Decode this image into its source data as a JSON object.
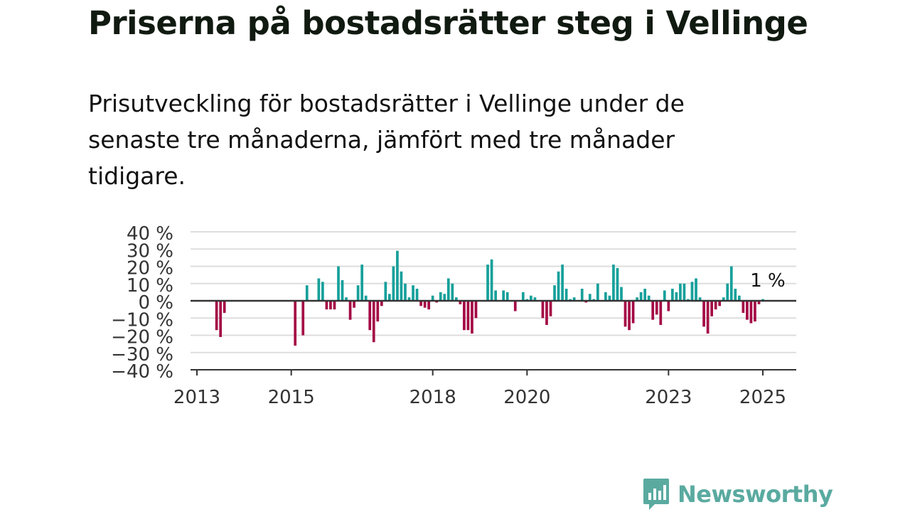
{
  "title": "Priserna på bostadsrätter steg i Vellinge",
  "subtitle": "Prisutveckling för bostadsrätter i Vellinge under de senaste tre månaderna, jämfört med tre månader tidigare.",
  "brand": {
    "name": "Newsworthy",
    "icon": "newsworthy-logo-icon"
  },
  "colors": {
    "positive": "#17a09b",
    "negative": "#a40b45",
    "grid": "#dddddd",
    "axis": "#333333",
    "text": "#111111"
  },
  "chart_data": {
    "type": "bar",
    "y_unit": "%",
    "ylim": [
      -40,
      40
    ],
    "y_ticks": [
      40,
      30,
      20,
      10,
      0,
      -10,
      -20,
      -30,
      -40
    ],
    "y_tick_labels": [
      "40 %",
      "30 %",
      "20 %",
      "10 %",
      "0 %",
      "−10 %",
      "−20 %",
      "−30 %",
      "−40 %"
    ],
    "x_ticks": [
      {
        "label": "2013",
        "date": "2013-01"
      },
      {
        "label": "2015",
        "date": "2015-01"
      },
      {
        "label": "2018",
        "date": "2018-01"
      },
      {
        "label": "2020",
        "date": "2020-01"
      },
      {
        "label": "2023",
        "date": "2023-01"
      },
      {
        "label": "2025",
        "date": "2025-01"
      }
    ],
    "grid": true,
    "annotation": {
      "text": "1 %",
      "date": "2025-01"
    },
    "points": [
      {
        "date": "2013-06",
        "value": -17
      },
      {
        "date": "2013-07",
        "value": -21
      },
      {
        "date": "2013-08",
        "value": -7
      },
      {
        "date": "2015-02",
        "value": -26
      },
      {
        "date": "2015-04",
        "value": -20
      },
      {
        "date": "2015-05",
        "value": 9
      },
      {
        "date": "2015-08",
        "value": 13
      },
      {
        "date": "2015-09",
        "value": 11
      },
      {
        "date": "2015-10",
        "value": -5
      },
      {
        "date": "2015-11",
        "value": -5
      },
      {
        "date": "2015-12",
        "value": -5
      },
      {
        "date": "2016-01",
        "value": 20
      },
      {
        "date": "2016-02",
        "value": 12
      },
      {
        "date": "2016-03",
        "value": 2
      },
      {
        "date": "2016-04",
        "value": -11
      },
      {
        "date": "2016-05",
        "value": -4
      },
      {
        "date": "2016-06",
        "value": 9
      },
      {
        "date": "2016-07",
        "value": 21
      },
      {
        "date": "2016-08",
        "value": 3
      },
      {
        "date": "2016-09",
        "value": -17
      },
      {
        "date": "2016-10",
        "value": -24
      },
      {
        "date": "2016-11",
        "value": -12
      },
      {
        "date": "2016-12",
        "value": -3
      },
      {
        "date": "2017-01",
        "value": 11
      },
      {
        "date": "2017-02",
        "value": 4
      },
      {
        "date": "2017-03",
        "value": 20
      },
      {
        "date": "2017-04",
        "value": 29
      },
      {
        "date": "2017-05",
        "value": 17
      },
      {
        "date": "2017-06",
        "value": 10
      },
      {
        "date": "2017-07",
        "value": 2
      },
      {
        "date": "2017-08",
        "value": 9
      },
      {
        "date": "2017-09",
        "value": 7
      },
      {
        "date": "2017-10",
        "value": -3
      },
      {
        "date": "2017-11",
        "value": -4
      },
      {
        "date": "2017-12",
        "value": -5
      },
      {
        "date": "2018-01",
        "value": 3
      },
      {
        "date": "2018-02",
        "value": -1
      },
      {
        "date": "2018-03",
        "value": 5
      },
      {
        "date": "2018-04",
        "value": 4
      },
      {
        "date": "2018-05",
        "value": 13
      },
      {
        "date": "2018-06",
        "value": 10
      },
      {
        "date": "2018-07",
        "value": 2
      },
      {
        "date": "2018-08",
        "value": -2
      },
      {
        "date": "2018-09",
        "value": -17
      },
      {
        "date": "2018-10",
        "value": -17
      },
      {
        "date": "2018-11",
        "value": -19
      },
      {
        "date": "2018-12",
        "value": -10
      },
      {
        "date": "2019-03",
        "value": 21
      },
      {
        "date": "2019-04",
        "value": 24
      },
      {
        "date": "2019-05",
        "value": 6
      },
      {
        "date": "2019-07",
        "value": 6
      },
      {
        "date": "2019-08",
        "value": 5
      },
      {
        "date": "2019-10",
        "value": -6
      },
      {
        "date": "2019-12",
        "value": 5
      },
      {
        "date": "2020-01",
        "value": 1
      },
      {
        "date": "2020-02",
        "value": 3
      },
      {
        "date": "2020-03",
        "value": 2
      },
      {
        "date": "2020-05",
        "value": -10
      },
      {
        "date": "2020-06",
        "value": -14
      },
      {
        "date": "2020-07",
        "value": -9
      },
      {
        "date": "2020-08",
        "value": 9
      },
      {
        "date": "2020-09",
        "value": 17
      },
      {
        "date": "2020-10",
        "value": 21
      },
      {
        "date": "2020-11",
        "value": 7
      },
      {
        "date": "2020-12",
        "value": 1
      },
      {
        "date": "2021-01",
        "value": 2
      },
      {
        "date": "2021-03",
        "value": 7
      },
      {
        "date": "2021-04",
        "value": -1
      },
      {
        "date": "2021-05",
        "value": 4
      },
      {
        "date": "2021-06",
        "value": 1
      },
      {
        "date": "2021-07",
        "value": 10
      },
      {
        "date": "2021-09",
        "value": 5
      },
      {
        "date": "2021-10",
        "value": 3
      },
      {
        "date": "2021-11",
        "value": 21
      },
      {
        "date": "2021-12",
        "value": 19
      },
      {
        "date": "2022-01",
        "value": 8
      },
      {
        "date": "2022-02",
        "value": -15
      },
      {
        "date": "2022-03",
        "value": -17
      },
      {
        "date": "2022-04",
        "value": -13
      },
      {
        "date": "2022-05",
        "value": 2
      },
      {
        "date": "2022-06",
        "value": 5
      },
      {
        "date": "2022-07",
        "value": 7
      },
      {
        "date": "2022-08",
        "value": 3
      },
      {
        "date": "2022-09",
        "value": -11
      },
      {
        "date": "2022-10",
        "value": -8
      },
      {
        "date": "2022-11",
        "value": -14
      },
      {
        "date": "2022-12",
        "value": 6
      },
      {
        "date": "2023-01",
        "value": -6
      },
      {
        "date": "2023-02",
        "value": 7
      },
      {
        "date": "2023-03",
        "value": 5
      },
      {
        "date": "2023-04",
        "value": 10
      },
      {
        "date": "2023-05",
        "value": 10
      },
      {
        "date": "2023-06",
        "value": 1
      },
      {
        "date": "2023-07",
        "value": 11
      },
      {
        "date": "2023-08",
        "value": 13
      },
      {
        "date": "2023-09",
        "value": 2
      },
      {
        "date": "2023-10",
        "value": -15
      },
      {
        "date": "2023-11",
        "value": -19
      },
      {
        "date": "2023-12",
        "value": -9
      },
      {
        "date": "2024-01",
        "value": -5
      },
      {
        "date": "2024-02",
        "value": -3
      },
      {
        "date": "2024-03",
        "value": 2
      },
      {
        "date": "2024-04",
        "value": 10
      },
      {
        "date": "2024-05",
        "value": 20
      },
      {
        "date": "2024-06",
        "value": 7
      },
      {
        "date": "2024-07",
        "value": 3
      },
      {
        "date": "2024-08",
        "value": -7
      },
      {
        "date": "2024-09",
        "value": -11
      },
      {
        "date": "2024-10",
        "value": -13
      },
      {
        "date": "2024-11",
        "value": -12
      },
      {
        "date": "2024-12",
        "value": -2
      },
      {
        "date": "2025-01",
        "value": 1
      }
    ]
  }
}
